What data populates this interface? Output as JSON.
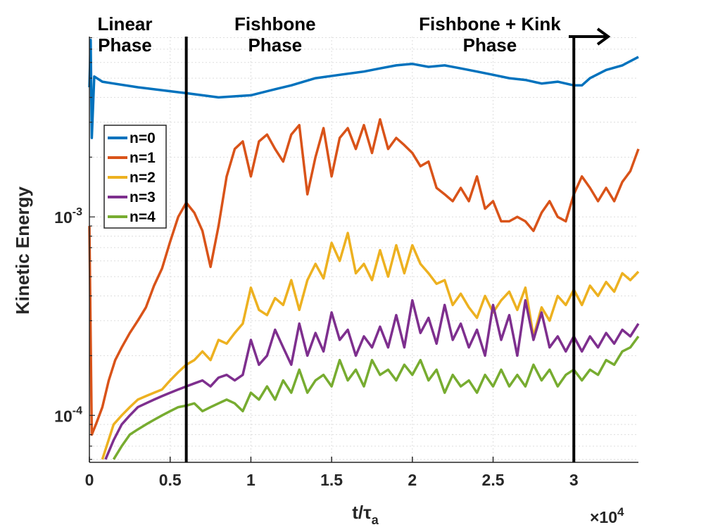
{
  "chart_data": {
    "type": "line",
    "title": "",
    "xlabel": "t/τa",
    "xlabel_main": "t/τ",
    "xlabel_sub": "a",
    "ylabel": "Kinetic Energy",
    "x_exponent_label": "×10",
    "x_exponent_power": "4",
    "xlim": [
      0,
      34000
    ],
    "ylim": [
      5.8e-05,
      0.0081
    ],
    "yscale": "log",
    "grid": true,
    "legend_position": "upper-left",
    "x_ticks": [
      {
        "value": 0,
        "label": "0"
      },
      {
        "value": 5000,
        "label": "0.5"
      },
      {
        "value": 10000,
        "label": "1"
      },
      {
        "value": 15000,
        "label": "1.5"
      },
      {
        "value": 20000,
        "label": "2"
      },
      {
        "value": 25000,
        "label": "2.5"
      },
      {
        "value": 30000,
        "label": "3"
      }
    ],
    "y_ticks": [
      {
        "value": 0.0001,
        "base": "10",
        "exp": "-4"
      },
      {
        "value": 0.001,
        "base": "10",
        "exp": "-3"
      }
    ],
    "phase_boundaries": [
      6000,
      30000
    ],
    "phase_labels": [
      {
        "lines": [
          "Linear",
          "Phase"
        ],
        "x": 2200
      },
      {
        "lines": [
          "Fishbone",
          "Phase"
        ],
        "x": 11500
      },
      {
        "lines": [
          "Fishbone + Kink",
          "Phase"
        ],
        "x": 24800
      }
    ],
    "series": [
      {
        "name": "n=0",
        "color": "#0072BD",
        "x": [
          0,
          80,
          150,
          300,
          800,
          1500,
          3000,
          5000,
          6000,
          8000,
          10000,
          11500,
          12500,
          14000,
          15500,
          17000,
          18000,
          19000,
          20000,
          21000,
          22000,
          23000,
          24000,
          25000,
          26000,
          27000,
          28000,
          29000,
          30000,
          30500,
          31000,
          32000,
          33000,
          34000
        ],
        "y": [
          0.0045,
          0.0078,
          0.0025,
          0.0051,
          0.0048,
          0.0047,
          0.0045,
          0.0043,
          0.0042,
          0.004,
          0.0041,
          0.0044,
          0.0046,
          0.005,
          0.0052,
          0.0054,
          0.0056,
          0.0058,
          0.0059,
          0.0057,
          0.0058,
          0.0056,
          0.0054,
          0.0052,
          0.005,
          0.0049,
          0.0047,
          0.0048,
          0.0046,
          0.0046,
          0.005,
          0.0055,
          0.0058,
          0.0064
        ]
      },
      {
        "name": "n=1",
        "color": "#D95319",
        "x": [
          0,
          150,
          400,
          800,
          1200,
          1600,
          2000,
          2500,
          3000,
          3500,
          4000,
          4500,
          5000,
          5500,
          6000,
          6500,
          7000,
          7500,
          8000,
          8500,
          9000,
          9500,
          10000,
          10500,
          11000,
          11500,
          12000,
          12500,
          13000,
          13500,
          14000,
          14500,
          15000,
          15500,
          16000,
          16500,
          17000,
          17500,
          18000,
          18500,
          19000,
          19500,
          20000,
          20500,
          21000,
          21500,
          22000,
          22500,
          23000,
          23500,
          24000,
          24500,
          25000,
          25500,
          26000,
          26500,
          27000,
          27500,
          28000,
          28500,
          29000,
          29500,
          30000,
          30500,
          31000,
          31500,
          32000,
          32500,
          33000,
          33500,
          34000
        ],
        "y": [
          0.0009,
          8e-05,
          9e-05,
          0.00011,
          0.00015,
          0.00019,
          0.00022,
          0.00026,
          0.0003,
          0.00035,
          0.00045,
          0.00055,
          0.00075,
          0.001,
          0.00118,
          0.00105,
          0.00085,
          0.00056,
          0.0009,
          0.0016,
          0.0022,
          0.0024,
          0.0016,
          0.0024,
          0.0026,
          0.0022,
          0.0019,
          0.0026,
          0.0029,
          0.0013,
          0.002,
          0.0028,
          0.0016,
          0.0025,
          0.0028,
          0.0022,
          0.0029,
          0.0021,
          0.0031,
          0.0022,
          0.0025,
          0.0023,
          0.0021,
          0.0018,
          0.0019,
          0.0014,
          0.0013,
          0.0012,
          0.0014,
          0.0012,
          0.0016,
          0.0011,
          0.0012,
          0.00095,
          0.00095,
          0.001,
          0.00095,
          0.00085,
          0.00105,
          0.0012,
          0.001,
          0.00095,
          0.0013,
          0.0016,
          0.0014,
          0.0012,
          0.0014,
          0.0012,
          0.0015,
          0.0017,
          0.0022
        ]
      },
      {
        "name": "n=2",
        "color": "#EDB120",
        "x": [
          800,
          1500,
          2000,
          2500,
          3000,
          3500,
          4000,
          4500,
          5000,
          5500,
          6000,
          6500,
          7000,
          7500,
          8000,
          8500,
          9000,
          9500,
          10000,
          10500,
          11000,
          11500,
          12000,
          12500,
          13000,
          13500,
          14000,
          14500,
          15000,
          15500,
          16000,
          16500,
          17000,
          17500,
          18000,
          18500,
          19000,
          19500,
          20000,
          20500,
          21000,
          21500,
          22000,
          22500,
          23000,
          23500,
          24000,
          24500,
          25000,
          25500,
          26000,
          26500,
          27000,
          27500,
          28000,
          28500,
          29000,
          29500,
          30000,
          30500,
          31000,
          31500,
          32000,
          32500,
          33000,
          33500,
          34000
        ],
        "y": [
          6e-05,
          9e-05,
          0.0001,
          0.00011,
          0.00012,
          0.000125,
          0.00013,
          0.000135,
          0.00015,
          0.000165,
          0.00018,
          0.00019,
          0.00021,
          0.00019,
          0.00024,
          0.00023,
          0.00026,
          0.00029,
          0.00044,
          0.00034,
          0.00032,
          0.00039,
          0.00036,
          0.00048,
          0.00034,
          0.00048,
          0.00058,
          0.00049,
          0.00074,
          0.0006,
          0.00083,
          0.00052,
          0.00058,
          0.00048,
          0.00068,
          0.0005,
          0.00072,
          0.00052,
          0.00072,
          0.00058,
          0.00052,
          0.00046,
          0.00048,
          0.00036,
          0.00041,
          0.00035,
          0.00031,
          0.0004,
          0.00033,
          0.00038,
          0.00042,
          0.00034,
          0.00044,
          0.00025,
          0.00035,
          0.0003,
          0.0004,
          0.00036,
          0.00043,
          0.00036,
          0.00045,
          0.0004,
          0.00047,
          0.00042,
          0.00052,
          0.00048,
          0.00053
        ]
      },
      {
        "name": "n=3",
        "color": "#7E2F8E",
        "x": [
          1000,
          1500,
          2000,
          2500,
          3000,
          3500,
          4000,
          4500,
          5000,
          5500,
          6000,
          6500,
          7000,
          7500,
          8000,
          8500,
          9000,
          9500,
          10000,
          10500,
          11000,
          11500,
          12000,
          12500,
          13000,
          13500,
          14000,
          14500,
          15000,
          15500,
          16000,
          16500,
          17000,
          17500,
          18000,
          18500,
          19000,
          19500,
          20000,
          20500,
          21000,
          21500,
          22000,
          22500,
          23000,
          23500,
          24000,
          24500,
          25000,
          25500,
          26000,
          26500,
          27000,
          27500,
          28000,
          28500,
          29000,
          29500,
          30000,
          30500,
          31000,
          31500,
          32000,
          32500,
          33000,
          33500,
          34000
        ],
        "y": [
          6e-05,
          7.5e-05,
          9e-05,
          0.0001,
          0.00011,
          0.000115,
          0.00012,
          0.000125,
          0.00013,
          0.000135,
          0.00014,
          0.000145,
          0.00015,
          0.00014,
          0.000155,
          0.00016,
          0.00015,
          0.00016,
          0.00024,
          0.00018,
          0.0002,
          0.00027,
          0.00022,
          0.00018,
          0.00029,
          0.0002,
          0.00026,
          0.00021,
          0.00033,
          0.00024,
          0.00027,
          0.0002,
          0.00025,
          0.00022,
          0.00028,
          0.00022,
          0.00032,
          0.00022,
          0.00038,
          0.00026,
          0.00031,
          0.00023,
          0.00036,
          0.00024,
          0.00029,
          0.00022,
          0.00027,
          0.0002,
          0.00036,
          0.00024,
          0.00032,
          0.0002,
          0.00038,
          0.00024,
          0.00033,
          0.00022,
          0.00025,
          0.00021,
          0.00025,
          0.00021,
          0.00025,
          0.00022,
          0.00026,
          0.00023,
          0.00027,
          0.00025,
          0.00029
        ]
      },
      {
        "name": "n=4",
        "color": "#77AC30",
        "x": [
          1500,
          2000,
          2500,
          3000,
          3500,
          4000,
          4500,
          5000,
          5500,
          6000,
          6500,
          7000,
          7500,
          8000,
          8500,
          9000,
          9500,
          10000,
          10500,
          11000,
          11500,
          12000,
          12500,
          13000,
          13500,
          14000,
          14500,
          15000,
          15500,
          16000,
          16500,
          17000,
          17500,
          18000,
          18500,
          19000,
          19500,
          20000,
          20500,
          21000,
          21500,
          22000,
          22500,
          23000,
          23500,
          24000,
          24500,
          25000,
          25500,
          26000,
          26500,
          27000,
          27500,
          28000,
          28500,
          29000,
          29500,
          30000,
          30500,
          31000,
          31500,
          32000,
          32500,
          33000,
          33500,
          34000
        ],
        "y": [
          6e-05,
          7e-05,
          8e-05,
          8.5e-05,
          9e-05,
          9.5e-05,
          0.0001,
          0.000105,
          0.00011,
          0.000112,
          0.000115,
          0.000105,
          0.00011,
          0.000115,
          0.00012,
          0.000115,
          0.000105,
          0.00013,
          0.00012,
          0.00014,
          0.00012,
          0.00015,
          0.00013,
          0.00017,
          0.00013,
          0.00015,
          0.00016,
          0.00014,
          0.00019,
          0.00015,
          0.00017,
          0.00014,
          0.00019,
          0.00016,
          0.00017,
          0.00015,
          0.00018,
          0.00016,
          0.00019,
          0.00015,
          0.00017,
          0.00013,
          0.00016,
          0.00014,
          0.00015,
          0.00013,
          0.00016,
          0.00014,
          0.00017,
          0.00014,
          0.00016,
          0.00014,
          0.00018,
          0.00015,
          0.00017,
          0.00014,
          0.00016,
          0.00017,
          0.00015,
          0.00017,
          0.00016,
          0.00019,
          0.00018,
          0.00021,
          0.00022,
          0.00025
        ]
      }
    ]
  }
}
